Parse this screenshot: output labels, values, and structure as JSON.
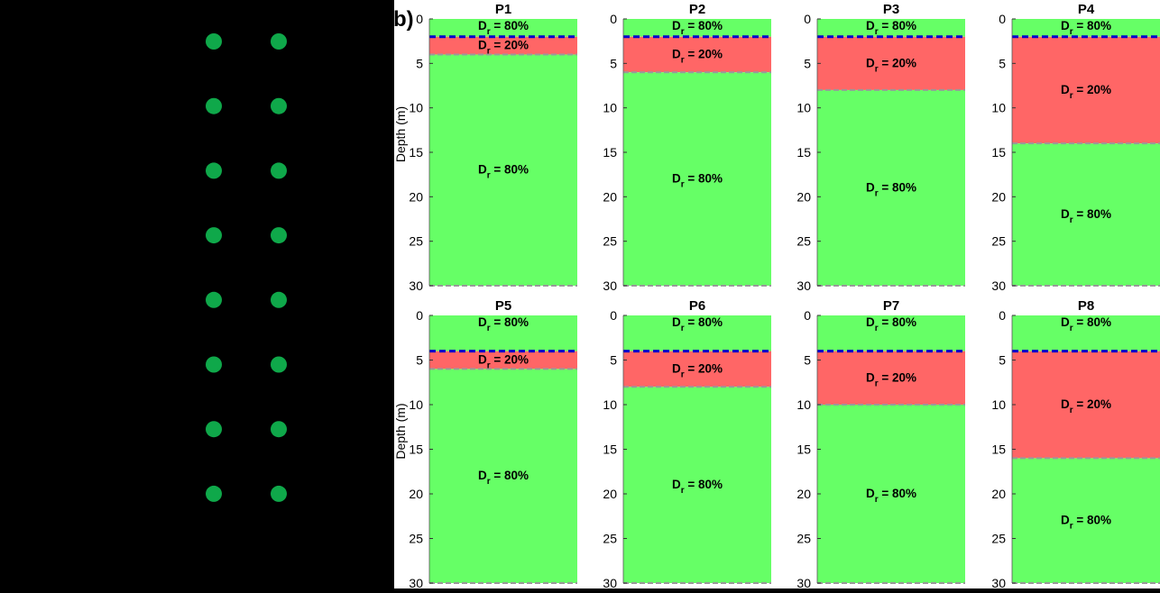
{
  "panel_label": "b)",
  "colors": {
    "dense": "#66ff66",
    "loose": "#ff6666",
    "water_table": "#0000cc",
    "boundary": "#999999",
    "marker": "#0fa84a",
    "background_left": "#000000"
  },
  "pile_markers": {
    "rows": 8,
    "columns": 2
  },
  "chart_data": [
    {
      "type": "profile",
      "title": "P1",
      "ylabel": "Depth (m)",
      "ylim": [
        0,
        30
      ],
      "yticks": [
        0,
        5,
        10,
        15,
        20,
        25,
        30
      ],
      "water_table_depth": 2,
      "layers": [
        {
          "top": 0,
          "bottom": 2,
          "label": "Dr = 80%",
          "base": "D",
          "sub": "r",
          "value": "= 80%"
        },
        {
          "top": 2,
          "bottom": 4,
          "label": "Dr = 20%",
          "base": "D",
          "sub": "r",
          "value": "= 20%"
        },
        {
          "top": 4,
          "bottom": 30,
          "label": "Dr = 80%",
          "base": "D",
          "sub": "r",
          "value": "= 80%"
        }
      ]
    },
    {
      "type": "profile",
      "title": "P2",
      "ylabel": "",
      "ylim": [
        0,
        30
      ],
      "yticks": [
        0,
        5,
        10,
        15,
        20,
        25,
        30
      ],
      "water_table_depth": 2,
      "layers": [
        {
          "top": 0,
          "bottom": 2,
          "label": "Dr = 80%",
          "base": "D",
          "sub": "r",
          "value": "= 80%"
        },
        {
          "top": 2,
          "bottom": 6,
          "label": "Dr = 20%",
          "base": "D",
          "sub": "r",
          "value": "= 20%"
        },
        {
          "top": 6,
          "bottom": 30,
          "label": "Dr = 80%",
          "base": "D",
          "sub": "r",
          "value": "= 80%"
        }
      ]
    },
    {
      "type": "profile",
      "title": "P3",
      "ylabel": "",
      "ylim": [
        0,
        30
      ],
      "yticks": [
        0,
        5,
        10,
        15,
        20,
        25,
        30
      ],
      "water_table_depth": 2,
      "layers": [
        {
          "top": 0,
          "bottom": 2,
          "label": "Dr = 80%",
          "base": "D",
          "sub": "r",
          "value": "= 80%"
        },
        {
          "top": 2,
          "bottom": 8,
          "label": "Dr = 20%",
          "base": "D",
          "sub": "r",
          "value": "= 20%"
        },
        {
          "top": 8,
          "bottom": 30,
          "label": "Dr = 80%",
          "base": "D",
          "sub": "r",
          "value": "= 80%"
        }
      ]
    },
    {
      "type": "profile",
      "title": "P4",
      "ylabel": "",
      "ylim": [
        0,
        30
      ],
      "yticks": [
        0,
        5,
        10,
        15,
        20,
        25,
        30
      ],
      "water_table_depth": 2,
      "layers": [
        {
          "top": 0,
          "bottom": 2,
          "label": "Dr = 80%",
          "base": "D",
          "sub": "r",
          "value": "= 80%"
        },
        {
          "top": 2,
          "bottom": 14,
          "label": "Dr = 20%",
          "base": "D",
          "sub": "r",
          "value": "= 20%"
        },
        {
          "top": 14,
          "bottom": 30,
          "label": "Dr = 80%",
          "base": "D",
          "sub": "r",
          "value": "= 80%"
        }
      ]
    },
    {
      "type": "profile",
      "title": "P5",
      "ylabel": "Depth (m)",
      "ylim": [
        0,
        30
      ],
      "yticks": [
        0,
        5,
        10,
        15,
        20,
        25,
        30
      ],
      "water_table_depth": 4,
      "layers": [
        {
          "top": 0,
          "bottom": 4,
          "label": "Dr = 80%",
          "base": "D",
          "sub": "r",
          "value": "= 80%"
        },
        {
          "top": 4,
          "bottom": 6,
          "label": "Dr = 20%",
          "base": "D",
          "sub": "r",
          "value": "= 20%"
        },
        {
          "top": 6,
          "bottom": 30,
          "label": "Dr = 80%",
          "base": "D",
          "sub": "r",
          "value": "= 80%"
        }
      ]
    },
    {
      "type": "profile",
      "title": "P6",
      "ylabel": "",
      "ylim": [
        0,
        30
      ],
      "yticks": [
        0,
        5,
        10,
        15,
        20,
        25,
        30
      ],
      "water_table_depth": 4,
      "layers": [
        {
          "top": 0,
          "bottom": 4,
          "label": "Dr = 80%",
          "base": "D",
          "sub": "r",
          "value": "= 80%"
        },
        {
          "top": 4,
          "bottom": 8,
          "label": "Dr = 20%",
          "base": "D",
          "sub": "r",
          "value": "= 20%"
        },
        {
          "top": 8,
          "bottom": 30,
          "label": "Dr = 80%",
          "base": "D",
          "sub": "r",
          "value": "= 80%"
        }
      ]
    },
    {
      "type": "profile",
      "title": "P7",
      "ylabel": "",
      "ylim": [
        0,
        30
      ],
      "yticks": [
        0,
        5,
        10,
        15,
        20,
        25,
        30
      ],
      "water_table_depth": 4,
      "layers": [
        {
          "top": 0,
          "bottom": 4,
          "label": "Dr = 80%",
          "base": "D",
          "sub": "r",
          "value": "= 80%"
        },
        {
          "top": 4,
          "bottom": 10,
          "label": "Dr = 20%",
          "base": "D",
          "sub": "r",
          "value": "= 20%"
        },
        {
          "top": 10,
          "bottom": 30,
          "label": "Dr = 80%",
          "base": "D",
          "sub": "r",
          "value": "= 80%"
        }
      ]
    },
    {
      "type": "profile",
      "title": "P8",
      "ylabel": "",
      "ylim": [
        0,
        30
      ],
      "yticks": [
        0,
        5,
        10,
        15,
        20,
        25,
        30
      ],
      "water_table_depth": 4,
      "layers": [
        {
          "top": 0,
          "bottom": 4,
          "label": "Dr = 80%",
          "base": "D",
          "sub": "r",
          "value": "= 80%"
        },
        {
          "top": 4,
          "bottom": 16,
          "label": "Dr = 20%",
          "base": "D",
          "sub": "r",
          "value": "= 20%"
        },
        {
          "top": 16,
          "bottom": 30,
          "label": "Dr = 80%",
          "base": "D",
          "sub": "r",
          "value": "= 80%"
        }
      ]
    }
  ]
}
